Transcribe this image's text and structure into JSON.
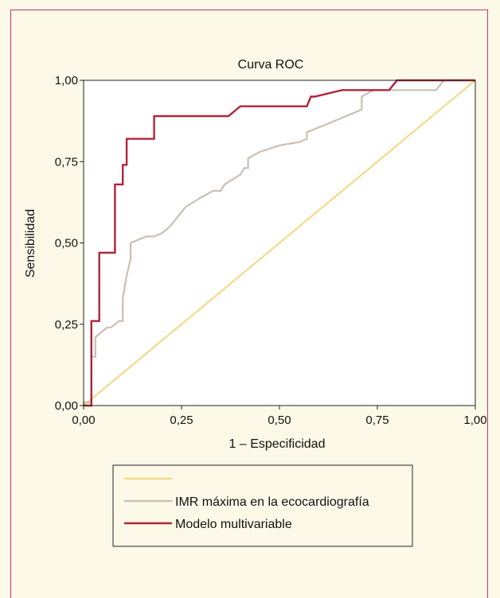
{
  "chart_data": {
    "type": "line",
    "title": "Curva ROC",
    "xlabel": "1 – Especificidad",
    "ylabel": "Sensibilidad",
    "xlim": [
      0,
      1
    ],
    "ylim": [
      0,
      1
    ],
    "xticks": [
      "0,00",
      "0,25",
      "0,50",
      "0,75",
      "1,00"
    ],
    "yticks": [
      "0,00",
      "0,25",
      "0,50",
      "0,75",
      "1,00"
    ],
    "legend_position": "bottom",
    "series": [
      {
        "name": "",
        "color": "#f5d98a",
        "x": [
          0,
          1
        ],
        "y": [
          0,
          1
        ]
      },
      {
        "name": "IMR máxima en la ecocardiografía",
        "color": "#cbbfb3",
        "x": [
          0.0,
          0.0,
          0.02,
          0.02,
          0.03,
          0.03,
          0.04,
          0.05,
          0.06,
          0.07,
          0.08,
          0.09,
          0.1,
          0.1,
          0.11,
          0.12,
          0.12,
          0.16,
          0.18,
          0.2,
          0.22,
          0.24,
          0.26,
          0.3,
          0.33,
          0.35,
          0.36,
          0.4,
          0.41,
          0.42,
          0.42,
          0.45,
          0.5,
          0.55,
          0.57,
          0.57,
          0.65,
          0.71,
          0.71,
          0.74,
          0.78,
          0.85,
          0.9,
          0.92,
          1.0
        ],
        "y": [
          0.0,
          0.01,
          0.01,
          0.15,
          0.15,
          0.21,
          0.22,
          0.23,
          0.24,
          0.24,
          0.25,
          0.26,
          0.26,
          0.33,
          0.4,
          0.45,
          0.5,
          0.52,
          0.52,
          0.53,
          0.55,
          0.58,
          0.61,
          0.64,
          0.66,
          0.66,
          0.68,
          0.71,
          0.73,
          0.73,
          0.76,
          0.78,
          0.8,
          0.81,
          0.82,
          0.84,
          0.88,
          0.91,
          0.95,
          0.97,
          0.97,
          0.97,
          0.97,
          1.0,
          1.0
        ]
      },
      {
        "name": "Modelo multivariable",
        "color": "#b0243a",
        "x": [
          0.0,
          0.02,
          0.02,
          0.04,
          0.04,
          0.08,
          0.08,
          0.1,
          0.1,
          0.11,
          0.11,
          0.18,
          0.18,
          0.37,
          0.4,
          0.4,
          0.57,
          0.58,
          0.59,
          0.66,
          0.76,
          0.78,
          0.8,
          1.0
        ],
        "y": [
          0.0,
          0.0,
          0.26,
          0.26,
          0.47,
          0.47,
          0.68,
          0.68,
          0.74,
          0.74,
          0.82,
          0.82,
          0.89,
          0.89,
          0.92,
          0.92,
          0.92,
          0.95,
          0.95,
          0.97,
          0.97,
          0.97,
          1.0,
          1.0
        ]
      }
    ]
  }
}
